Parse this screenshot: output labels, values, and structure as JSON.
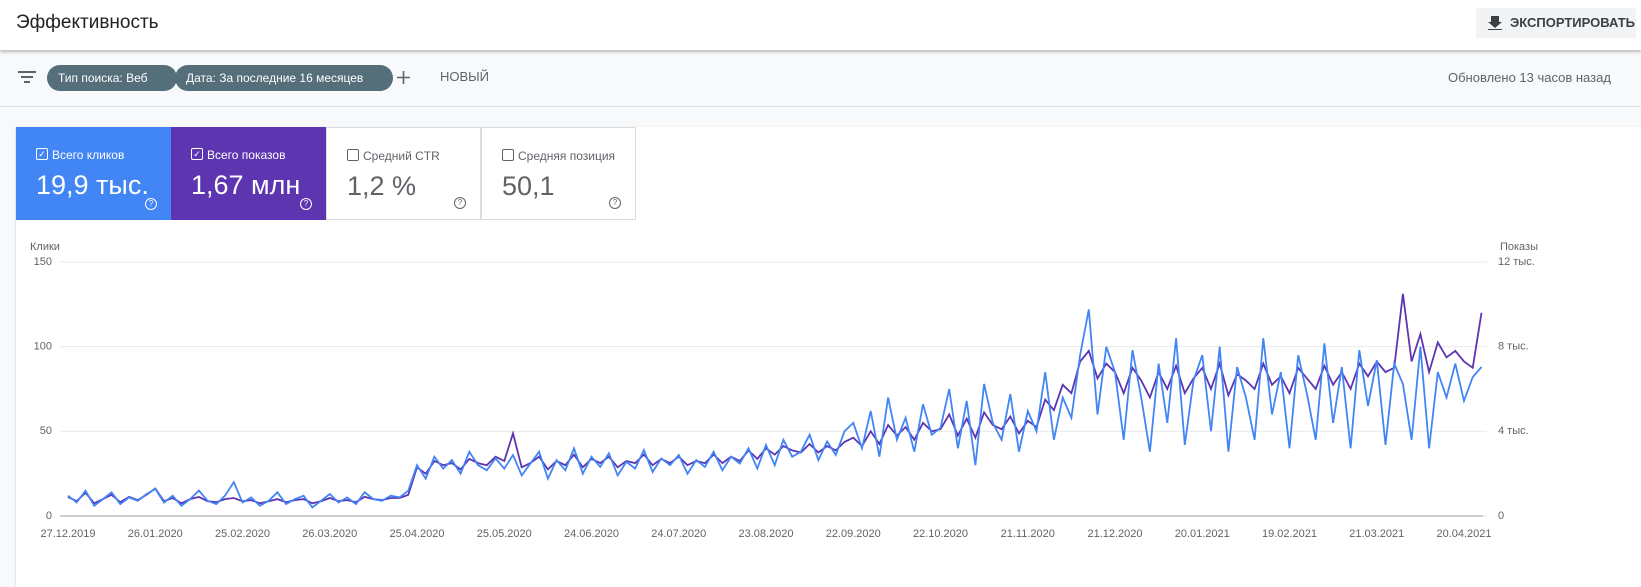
{
  "header": {
    "title": "Эффективность",
    "export_button": "ЭКСПОРТИРОВАТЬ"
  },
  "filters": {
    "chips": [
      "Тип поиска: Веб",
      "Дата: За последние 16 месяцев"
    ],
    "new_button": "НОВЫЙ",
    "updated": "Обновлено 13 часов назад"
  },
  "metrics": [
    {
      "label": "Всего кликов",
      "value": "19,9 тыс.",
      "checked": true,
      "color": "#4285f4"
    },
    {
      "label": "Всего показов",
      "value": "1,67 млн",
      "checked": true,
      "color": "#5e35b1"
    },
    {
      "label": "Средний CTR",
      "value": "1,2 %",
      "checked": false
    },
    {
      "label": "Средняя позиция",
      "value": "50,1",
      "checked": false
    }
  ],
  "chart_data": {
    "type": "line",
    "y_label": "Клики",
    "y2_label": "Показы",
    "grid": true,
    "ylim": [
      0,
      150
    ],
    "yticks": [
      0,
      50,
      100,
      150
    ],
    "y2lim": [
      0,
      12000
    ],
    "y2ticks": [
      0,
      {
        "value": 4000,
        "label": "4 тыс."
      },
      {
        "value": 8000,
        "label": "8 тыс."
      },
      {
        "value": 12000,
        "label": "12 тыс."
      }
    ],
    "categories": [
      "27.12.2019",
      null,
      null,
      null,
      null,
      null,
      null,
      null,
      null,
      null,
      "26.01.2020",
      null,
      null,
      null,
      null,
      null,
      null,
      null,
      null,
      null,
      "25.02.2020",
      null,
      null,
      null,
      null,
      null,
      null,
      null,
      null,
      null,
      "26.03.2020",
      null,
      null,
      null,
      null,
      null,
      null,
      null,
      null,
      null,
      "25.04.2020",
      null,
      null,
      null,
      null,
      null,
      null,
      null,
      null,
      null,
      "25.05.2020",
      null,
      null,
      null,
      null,
      null,
      null,
      null,
      null,
      null,
      "24.06.2020",
      null,
      null,
      null,
      null,
      null,
      null,
      null,
      null,
      null,
      "24.07.2020",
      null,
      null,
      null,
      null,
      null,
      null,
      null,
      null,
      null,
      "23.08.2020",
      null,
      null,
      null,
      null,
      null,
      null,
      null,
      null,
      null,
      "22.09.2020",
      null,
      null,
      null,
      null,
      null,
      null,
      null,
      null,
      null,
      "22.10.2020",
      null,
      null,
      null,
      null,
      null,
      null,
      null,
      null,
      null,
      "21.11.2020",
      null,
      null,
      null,
      null,
      null,
      null,
      null,
      null,
      null,
      "21.12.2020",
      null,
      null,
      null,
      null,
      null,
      null,
      null,
      null,
      null,
      "20.01.2021",
      null,
      null,
      null,
      null,
      null,
      null,
      null,
      null,
      null,
      "19.02.2021",
      null,
      null,
      null,
      null,
      null,
      null,
      null,
      null,
      null,
      "21.03.2021",
      null,
      null,
      null,
      null,
      null,
      null,
      null,
      null,
      null,
      "20.04.2021",
      null,
      null
    ],
    "series": [
      {
        "color": "#4285f4",
        "axis": "y",
        "values": [
          12,
          8,
          15,
          6,
          10,
          14,
          7,
          11,
          9,
          13,
          16,
          8,
          12,
          6,
          10,
          15,
          9,
          7,
          12,
          20,
          8,
          11,
          6,
          9,
          14,
          7,
          10,
          12,
          5,
          9,
          13,
          8,
          11,
          7,
          14,
          10,
          9,
          12,
          11,
          15,
          30,
          22,
          35,
          28,
          33,
          25,
          38,
          30,
          27,
          34,
          28,
          36,
          24,
          31,
          38,
          22,
          33,
          27,
          40,
          25,
          35,
          29,
          37,
          24,
          32,
          28,
          39,
          26,
          34,
          30,
          36,
          25,
          33,
          29,
          38,
          27,
          35,
          31,
          40,
          28,
          42,
          30,
          45,
          35,
          38,
          48,
          33,
          44,
          36,
          50,
          55,
          40,
          62,
          35,
          70,
          45,
          58,
          38,
          66,
          48,
          52,
          75,
          40,
          68,
          30,
          78,
          55,
          45,
          72,
          38,
          62,
          50,
          85,
          45,
          70,
          58,
          95,
          122,
          60,
          100,
          85,
          45,
          98,
          70,
          38,
          90,
          55,
          105,
          42,
          80,
          95,
          50,
          100,
          38,
          88,
          70,
          45,
          105,
          60,
          85,
          40,
          95,
          72,
          45,
          102,
          55,
          88,
          40,
          98,
          65,
          92,
          42,
          90,
          78,
          45,
          100,
          40,
          85,
          70,
          90,
          68,
          82,
          88
        ]
      },
      {
        "color": "#5e35b1",
        "axis": "y2",
        "values": [
          900,
          700,
          1100,
          600,
          800,
          1000,
          650,
          900,
          750,
          1000,
          1300,
          700,
          850,
          600,
          800,
          900,
          700,
          650,
          800,
          850,
          700,
          750,
          600,
          700,
          800,
          650,
          750,
          800,
          600,
          700,
          850,
          700,
          750,
          650,
          900,
          800,
          750,
          850,
          850,
          1000,
          2300,
          2000,
          2600,
          2400,
          2500,
          2200,
          2700,
          2500,
          2400,
          2800,
          2600,
          3900,
          2300,
          2500,
          2800,
          2200,
          2600,
          2400,
          2900,
          2300,
          2700,
          2500,
          2800,
          2300,
          2600,
          2500,
          2900,
          2400,
          2700,
          2500,
          2800,
          2400,
          2600,
          2500,
          2900,
          2500,
          2800,
          2600,
          3100,
          2700,
          3200,
          2900,
          3300,
          3100,
          3000,
          3400,
          3000,
          3300,
          3100,
          3500,
          3700,
          3300,
          4000,
          3400,
          4300,
          3800,
          4200,
          3600,
          4400,
          4000,
          4100,
          4800,
          3800,
          4600,
          3700,
          4900,
          4300,
          4100,
          4700,
          3900,
          4500,
          4200,
          5500,
          5000,
          6200,
          5800,
          7300,
          7800,
          6500,
          7200,
          6800,
          5800,
          7000,
          6400,
          5600,
          6800,
          6000,
          7100,
          5800,
          6500,
          7000,
          6000,
          7200,
          5700,
          6700,
          6400,
          6000,
          7200,
          6200,
          6600,
          5800,
          7000,
          6500,
          6000,
          7100,
          6200,
          6800,
          6000,
          7200,
          6600,
          7300,
          6800,
          7000,
          10500,
          7300,
          8600,
          6800,
          8200,
          7500,
          7800,
          7300,
          7000,
          9600
        ]
      }
    ]
  }
}
